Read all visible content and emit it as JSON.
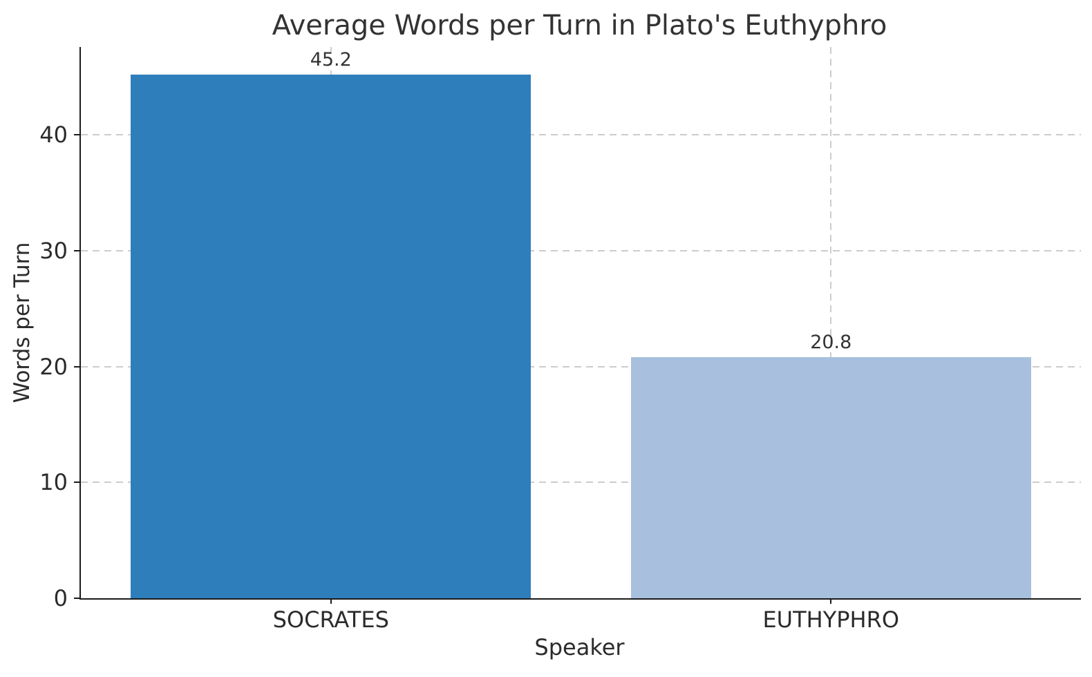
{
  "chart_data": {
    "type": "bar",
    "title": "Average Words per Turn in Plato's Euthyphro",
    "xlabel": "Speaker",
    "ylabel": "Words per Turn",
    "categories": [
      "SOCRATES",
      "EUTHYPHRO"
    ],
    "values": [
      45.2,
      20.8
    ],
    "value_labels": [
      "45.2",
      "20.8"
    ],
    "bar_colors": [
      "#2e7ebc",
      "#a8c0dd"
    ],
    "yticks": [
      0,
      10,
      20,
      30,
      40
    ],
    "ylim": [
      0,
      47.6
    ],
    "bar_width_fraction": 0.8,
    "grid": "dashed horizontal and vertical at category centers",
    "legend": "none",
    "colors": {
      "background": "#ffffff",
      "grid": "#cccccc",
      "spine": "#1a1a1a",
      "text": "#2b2b2b",
      "title_text": "#333333"
    }
  }
}
